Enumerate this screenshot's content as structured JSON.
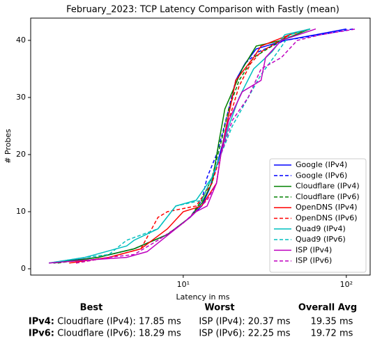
{
  "chart_data": {
    "type": "line",
    "title": "February_2023: TCP Latency Comparison with Fastly (mean)",
    "xlabel": "Latency in ms",
    "ylabel": "# Probes",
    "xscale": "log",
    "xlim": [
      1.16,
      140
    ],
    "ylim": [
      -1.1,
      43.9
    ],
    "xticks": [
      {
        "value": 10,
        "label": "10¹"
      },
      {
        "value": 100,
        "label": "10²"
      }
    ],
    "yticks": [
      0,
      10,
      20,
      30,
      40
    ],
    "legend": "lower right",
    "series": [
      {
        "name": "Google (IPv4)",
        "color": "#0000ff",
        "dashed": false,
        "x": [
          1.5,
          3,
          5,
          8,
          11,
          13,
          14.5,
          16,
          17.5,
          19,
          21,
          24,
          28,
          42,
          65,
          100
        ],
        "values": [
          1,
          2,
          3.5,
          6,
          9,
          11,
          14,
          18,
          22,
          27,
          33,
          36,
          38.5,
          40,
          41,
          42
        ]
      },
      {
        "name": "Google (IPv6)",
        "color": "#0000ff",
        "dashed": true,
        "x": [
          1.6,
          3,
          5,
          8,
          11,
          13,
          14,
          16,
          17.5,
          19,
          21,
          24,
          29,
          42,
          70,
          110
        ],
        "values": [
          1,
          2,
          3.5,
          6,
          9,
          12,
          16,
          20,
          24,
          28,
          33,
          36,
          38,
          40,
          41,
          42
        ]
      },
      {
        "name": "Cloudflare (IPv4)",
        "color": "#008000",
        "dashed": false,
        "x": [
          1.6,
          3,
          5,
          8,
          11,
          13,
          15,
          16.5,
          18,
          20,
          23,
          28,
          40,
          60
        ],
        "values": [
          1,
          2,
          3.5,
          6,
          9,
          11.5,
          15,
          22,
          28,
          31,
          35,
          39,
          40,
          42
        ]
      },
      {
        "name": "Cloudflare (IPv6)",
        "color": "#008000",
        "dashed": true,
        "x": [
          1.7,
          3,
          5,
          8,
          11,
          13,
          15,
          17,
          19,
          22,
          27,
          35,
          45,
          60
        ],
        "values": [
          1,
          2,
          3.5,
          6,
          9,
          12,
          16,
          22,
          28,
          33,
          37,
          39,
          41,
          42
        ]
      },
      {
        "name": "OpenDNS (IPv4)",
        "color": "#ff0000",
        "dashed": false,
        "x": [
          2,
          3.5,
          5.5,
          8,
          10,
          13,
          16,
          17,
          19,
          21,
          27,
          30,
          45,
          60
        ],
        "values": [
          1,
          2,
          3.5,
          7,
          10,
          11,
          15,
          20,
          27,
          33,
          37,
          39,
          41,
          42
        ]
      },
      {
        "name": "OpenDNS (IPv6)",
        "color": "#ff0000",
        "dashed": true,
        "x": [
          2.2,
          3.5,
          5.5,
          7,
          8,
          12,
          15,
          17,
          19,
          22,
          26,
          30,
          45,
          60
        ],
        "values": [
          1,
          2,
          3.5,
          9,
          10,
          11,
          15,
          20,
          26,
          32,
          36,
          38,
          41,
          42
        ]
      },
      {
        "name": "Quad9 (IPv4)",
        "color": "#00bfbf",
        "dashed": false,
        "x": [
          1.5,
          2.5,
          4.5,
          5,
          7,
          9,
          12,
          15,
          17,
          19,
          22,
          27,
          35,
          42,
          60
        ],
        "values": [
          1,
          2,
          4,
          5,
          7,
          11,
          12,
          16,
          20,
          25,
          30,
          35,
          38,
          41,
          42
        ]
      },
      {
        "name": "Quad9 (IPv6)",
        "color": "#00bfbf",
        "dashed": true,
        "x": [
          1.5,
          2.5,
          3.5,
          4.5,
          7,
          9,
          13,
          15,
          17,
          20,
          25,
          30,
          38,
          45,
          60
        ],
        "values": [
          1,
          2,
          2.5,
          5,
          7,
          11,
          12,
          16,
          20,
          25,
          30,
          34,
          38,
          41,
          42
        ]
      },
      {
        "name": "ISP (IPv4)",
        "color": "#bf00bf",
        "dashed": false,
        "x": [
          1.5,
          2.5,
          4.5,
          6,
          9,
          11,
          12,
          14,
          16,
          17,
          19,
          23,
          30,
          32,
          40,
          65
        ],
        "values": [
          1,
          1.5,
          2,
          3,
          7,
          9,
          10,
          11,
          15,
          20,
          26,
          31,
          33,
          37,
          40,
          42
        ]
      },
      {
        "name": "ISP (IPv6)",
        "color": "#bf00bf",
        "dashed": true,
        "x": [
          2.2,
          3.5,
          5,
          7,
          10,
          14,
          16,
          17,
          20,
          25,
          30,
          40,
          50,
          70,
          115
        ],
        "values": [
          1,
          2,
          2.5,
          5,
          8,
          12,
          15,
          20,
          26,
          30,
          35,
          37,
          40,
          41,
          42
        ]
      }
    ]
  },
  "table": {
    "columns": [
      "Best",
      "Worst",
      "Overall Avg"
    ],
    "rows": [
      [
        "IPv4:",
        "Cloudflare (IPv4): 17.85 ms",
        "ISP (IPv4): 20.37 ms",
        "19.35 ms"
      ],
      [
        "IPv6:",
        "Cloudflare (IPv6): 18.29 ms",
        "ISP (IPv6): 22.25 ms",
        "19.72 ms"
      ]
    ]
  }
}
